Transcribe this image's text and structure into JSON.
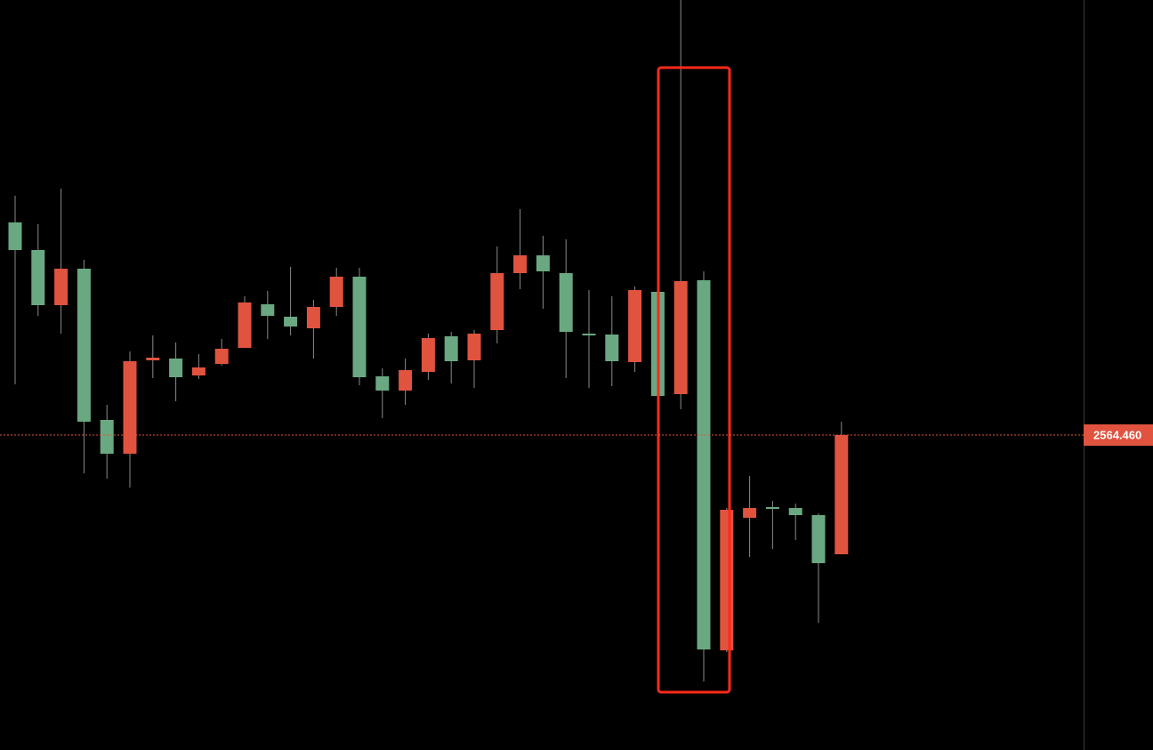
{
  "chart_data": {
    "type": "candlestick",
    "ylim": [
      2546.76,
      2588.91
    ],
    "up_color": "#e0533f",
    "down_color": "#6aa882",
    "open": [
      2576.41,
      2574.86,
      2571.76,
      2573.81,
      2565.31,
      2563.41,
      2568.66,
      2568.76,
      2567.81,
      2568.46,
      2569.36,
      2571.81,
      2571.11,
      2570.46,
      2571.66,
      2573.36,
      2567.76,
      2566.96,
      2568.01,
      2570.01,
      2568.66,
      2570.36,
      2573.56,
      2574.56,
      2573.56,
      2570.16,
      2570.11,
      2568.56,
      2572.51,
      2566.76,
      2573.16,
      2552.36,
      2559.81,
      2560.41,
      2560.36,
      2559.96,
      2557.76
    ],
    "high": [
      2577.91,
      2576.31,
      2578.31,
      2574.31,
      2566.16,
      2569.16,
      2570.06,
      2569.66,
      2569.01,
      2569.86,
      2572.26,
      2572.56,
      2573.91,
      2572.06,
      2573.86,
      2573.86,
      2568.21,
      2568.76,
      2570.16,
      2570.26,
      2570.36,
      2575.06,
      2577.16,
      2575.66,
      2575.46,
      2572.61,
      2572.26,
      2572.81,
      2572.66,
      2590.0,
      2573.66,
      2560.36,
      2562.16,
      2560.76,
      2560.61,
      2560.06,
      2565.21
    ],
    "low": [
      2567.31,
      2571.16,
      2570.16,
      2562.31,
      2562.01,
      2561.51,
      2567.66,
      2566.36,
      2567.61,
      2568.36,
      2569.36,
      2569.86,
      2570.06,
      2568.76,
      2571.16,
      2567.26,
      2565.41,
      2566.16,
      2567.56,
      2567.36,
      2567.11,
      2569.61,
      2572.66,
      2571.56,
      2567.66,
      2567.11,
      2567.21,
      2568.01,
      2566.66,
      2565.91,
      2550.61,
      2552.26,
      2557.61,
      2558.06,
      2558.56,
      2553.91,
      2557.76
    ],
    "close": [
      2574.86,
      2571.76,
      2573.81,
      2565.21,
      2563.41,
      2568.61,
      2568.81,
      2567.71,
      2568.26,
      2569.31,
      2571.91,
      2571.16,
      2570.56,
      2571.66,
      2573.36,
      2567.71,
      2566.96,
      2568.11,
      2569.91,
      2568.61,
      2570.16,
      2573.56,
      2574.56,
      2573.66,
      2570.26,
      2570.06,
      2568.61,
      2572.61,
      2566.66,
      2573.11,
      2552.41,
      2560.26,
      2560.36,
      2560.31,
      2559.96,
      2557.26,
      2564.46
    ],
    "price_line": {
      "value": 2564.46,
      "label": "2564.460"
    }
  }
}
